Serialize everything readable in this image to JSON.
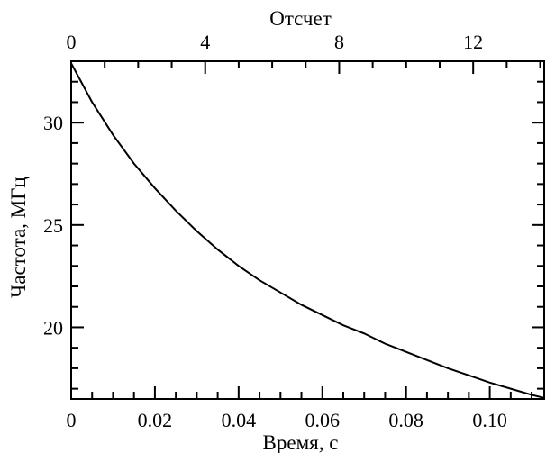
{
  "chart_data": {
    "type": "line",
    "xlabel": "Время, с",
    "ylabel": "Частота, МГц",
    "top_xlabel": "Отсчет",
    "xlim": [
      0,
      0.113
    ],
    "ylim": [
      16.5,
      33.0
    ],
    "top_xlim": [
      0,
      14.12
    ],
    "x_ticks": [
      0,
      0.02,
      0.04,
      0.06,
      0.08,
      0.1
    ],
    "x_tick_labels": [
      "0",
      "0.02",
      "0.04",
      "0.06",
      "0.08",
      "0.10"
    ],
    "top_ticks": [
      0,
      4,
      8,
      12
    ],
    "top_tick_labels": [
      "0",
      "4",
      "8",
      "12"
    ],
    "y_ticks": [
      20,
      25,
      30
    ],
    "y_tick_labels": [
      "20",
      "25",
      "30"
    ],
    "grid": false,
    "series": [
      {
        "x": [
          0,
          0.005,
          0.01,
          0.015,
          0.02,
          0.025,
          0.03,
          0.035,
          0.04,
          0.045,
          0.05,
          0.055,
          0.06,
          0.065,
          0.07,
          0.075,
          0.08,
          0.085,
          0.09,
          0.095,
          0.1,
          0.105,
          0.11,
          0.113
        ],
        "y": [
          32.9,
          31.0,
          29.4,
          28.0,
          26.8,
          25.7,
          24.7,
          23.8,
          23.0,
          22.3,
          21.7,
          21.1,
          20.6,
          20.1,
          19.7,
          19.2,
          18.8,
          18.4,
          18.0,
          17.65,
          17.3,
          17.0,
          16.7,
          16.55
        ]
      }
    ]
  }
}
